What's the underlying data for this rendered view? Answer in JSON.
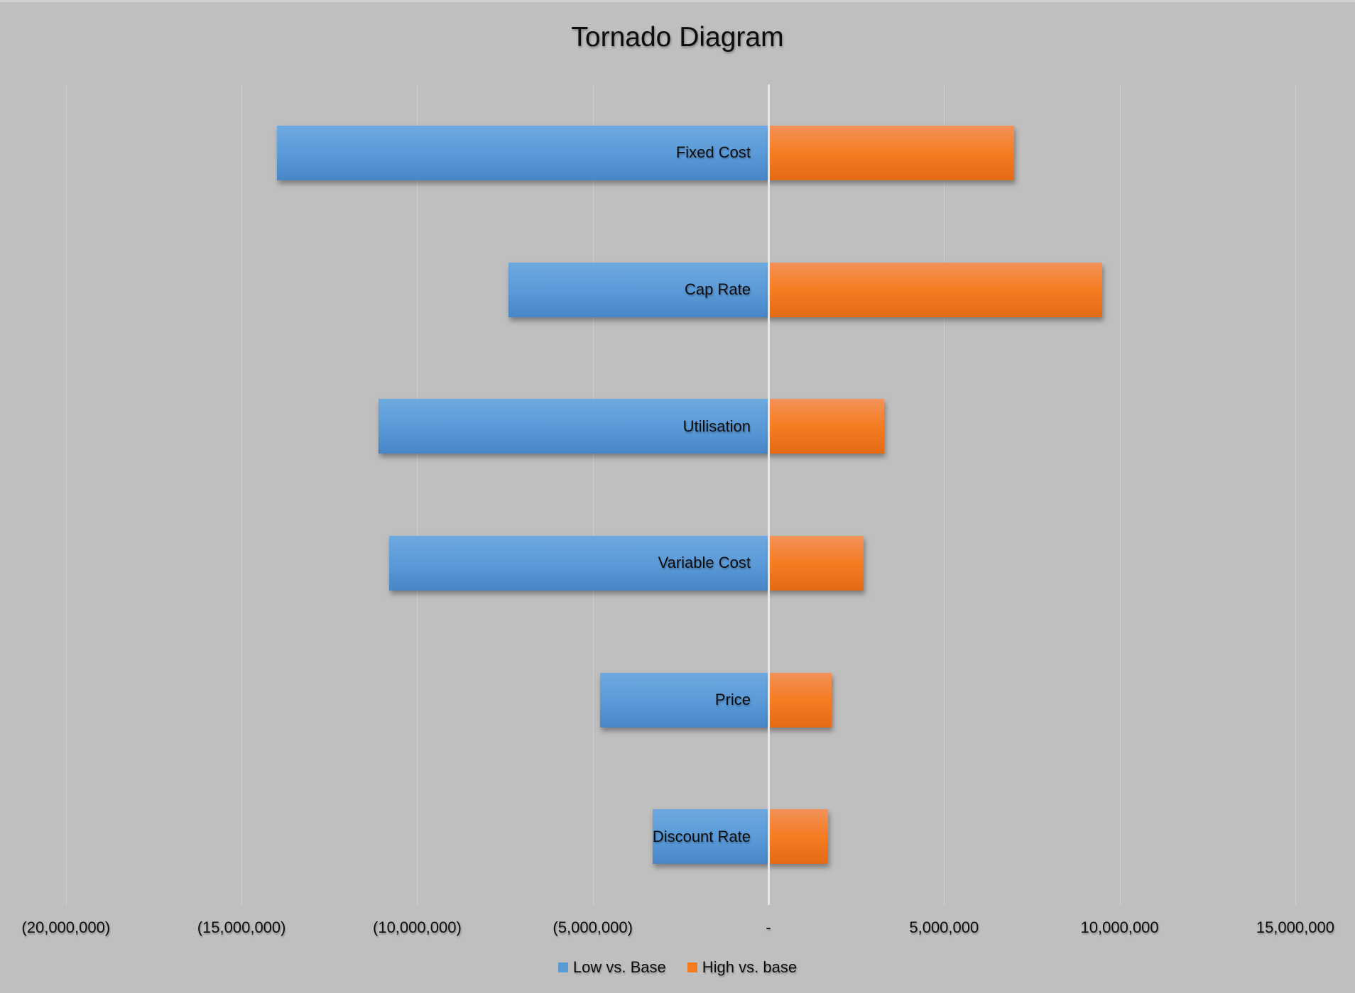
{
  "chart_data": {
    "type": "bar",
    "orientation": "horizontal",
    "subtype": "tornado",
    "title": "Tornado Diagram",
    "xlabel": "",
    "ylabel": "",
    "xlim": [
      -20000000,
      15000000
    ],
    "x_ticks": [
      -20000000,
      -15000000,
      -10000000,
      -5000000,
      0,
      5000000,
      10000000,
      15000000
    ],
    "x_tick_labels": [
      "(20,000,000)",
      "(15,000,000)",
      "(10,000,000)",
      "(5,000,000)",
      "-",
      "5,000,000",
      "10,000,000",
      "15,000,000"
    ],
    "grid": "vertical",
    "legend_position": "bottom",
    "categories": [
      "Fixed Cost",
      "Cap Rate",
      "Utilisation",
      "Variable Cost",
      "Price",
      "Discount Rate"
    ],
    "series": [
      {
        "name": "Low vs. Base",
        "color": "#5B9BD5",
        "values": [
          -14000000,
          -7400000,
          -11100000,
          -10800000,
          -4800000,
          -3300000
        ]
      },
      {
        "name": "High vs. base",
        "color": "#F47B20",
        "values": [
          7000000,
          9500000,
          3300000,
          2700000,
          1800000,
          1700000
        ]
      }
    ]
  },
  "colors": {
    "background": "#BFBFBF",
    "low": "#5B9BD5",
    "high": "#F47B20",
    "gridline": "#CFCFCF"
  }
}
